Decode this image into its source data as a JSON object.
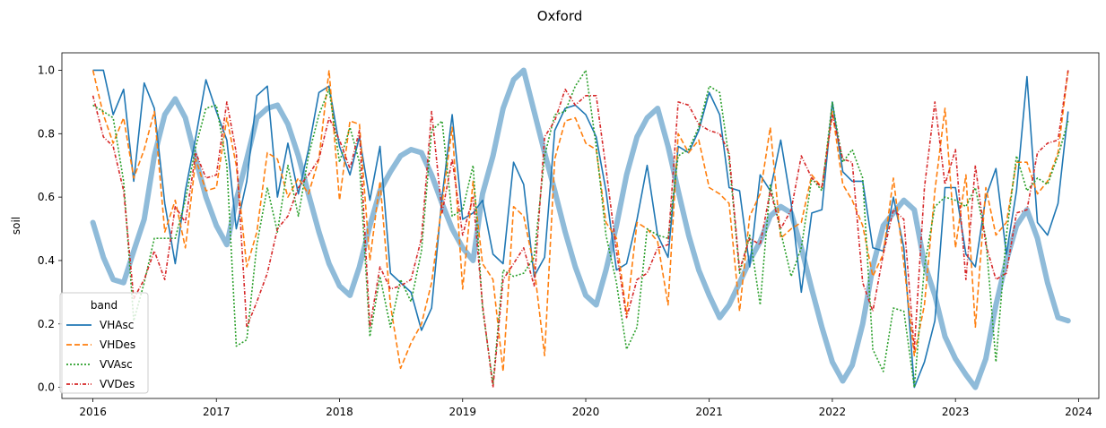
{
  "chart_data": {
    "type": "line",
    "title": "Oxford",
    "xlabel": "",
    "ylabel": "soil",
    "xlim": [
      "2015-10-01",
      "2024-03-01"
    ],
    "ylim": [
      -0.035,
      1.055
    ],
    "x_ticks": [
      "2016",
      "2017",
      "2018",
      "2019",
      "2020",
      "2021",
      "2022",
      "2023",
      "2024"
    ],
    "y_ticks": [
      "0.0",
      "0.2",
      "0.4",
      "0.6",
      "0.8",
      "1.0"
    ],
    "grid": false,
    "legend": {
      "title": "band",
      "placement": "lower-left"
    },
    "x": [
      "2016-01",
      "2016-02",
      "2016-03",
      "2016-04",
      "2016-05",
      "2016-06",
      "2016-07",
      "2016-08",
      "2016-09",
      "2016-10",
      "2016-11",
      "2016-12",
      "2017-01",
      "2017-02",
      "2017-03",
      "2017-04",
      "2017-05",
      "2017-06",
      "2017-07",
      "2017-08",
      "2017-09",
      "2017-10",
      "2017-11",
      "2017-12",
      "2018-01",
      "2018-02",
      "2018-03",
      "2018-04",
      "2018-05",
      "2018-06",
      "2018-07",
      "2018-08",
      "2018-09",
      "2018-10",
      "2018-11",
      "2018-12",
      "2019-01",
      "2019-02",
      "2019-03",
      "2019-04",
      "2019-05",
      "2019-06",
      "2019-07",
      "2019-08",
      "2019-09",
      "2019-10",
      "2019-11",
      "2019-12",
      "2020-01",
      "2020-02",
      "2020-03",
      "2020-04",
      "2020-05",
      "2020-06",
      "2020-07",
      "2020-08",
      "2020-09",
      "2020-10",
      "2020-11",
      "2020-12",
      "2021-01",
      "2021-02",
      "2021-03",
      "2021-04",
      "2021-05",
      "2021-06",
      "2021-07",
      "2021-08",
      "2021-09",
      "2021-10",
      "2021-11",
      "2021-12",
      "2022-01",
      "2022-02",
      "2022-03",
      "2022-04",
      "2022-05",
      "2022-06",
      "2022-07",
      "2022-08",
      "2022-09",
      "2022-10",
      "2022-11",
      "2022-12",
      "2023-01",
      "2023-02",
      "2023-03",
      "2023-04",
      "2023-05",
      "2023-06",
      "2023-07",
      "2023-08",
      "2023-09",
      "2023-10",
      "2023-11",
      "2023-12"
    ],
    "series": [
      {
        "name": "VHAsc",
        "color": "#1f77b4",
        "dash": "solid",
        "values": [
          1.0,
          1.0,
          0.86,
          0.94,
          0.65,
          0.96,
          0.88,
          0.58,
          0.39,
          0.62,
          0.79,
          0.97,
          0.87,
          0.78,
          0.5,
          0.65,
          0.92,
          0.95,
          0.6,
          0.77,
          0.61,
          0.75,
          0.93,
          0.95,
          0.76,
          0.67,
          0.79,
          0.59,
          0.76,
          0.36,
          0.33,
          0.3,
          0.18,
          0.25,
          0.6,
          0.86,
          0.53,
          0.55,
          0.59,
          0.42,
          0.39,
          0.71,
          0.64,
          0.35,
          0.41,
          0.81,
          0.88,
          0.89,
          0.86,
          0.79,
          0.62,
          0.37,
          0.39,
          0.53,
          0.7,
          0.48,
          0.41,
          0.76,
          0.74,
          0.81,
          0.93,
          0.86,
          0.63,
          0.62,
          0.38,
          0.67,
          0.62,
          0.78,
          0.58,
          0.3,
          0.55,
          0.56,
          0.9,
          0.68,
          0.65,
          0.65,
          0.44,
          0.43,
          0.6,
          0.44,
          0.0,
          0.08,
          0.21,
          0.63,
          0.63,
          0.42,
          0.38,
          0.6,
          0.69,
          0.42,
          0.62,
          0.98,
          0.52,
          0.48,
          0.58,
          0.87
        ]
      },
      {
        "name": "VHDes",
        "color": "#ff7f0e",
        "dash": "6,3",
        "values": [
          1.0,
          0.86,
          0.77,
          0.85,
          0.66,
          0.75,
          0.87,
          0.49,
          0.59,
          0.44,
          0.72,
          0.62,
          0.63,
          0.85,
          0.7,
          0.38,
          0.49,
          0.74,
          0.72,
          0.6,
          0.66,
          0.61,
          0.72,
          1.0,
          0.59,
          0.84,
          0.83,
          0.4,
          0.65,
          0.26,
          0.06,
          0.14,
          0.2,
          0.33,
          0.58,
          0.82,
          0.31,
          0.65,
          0.39,
          0.34,
          0.05,
          0.57,
          0.54,
          0.38,
          0.1,
          0.72,
          0.84,
          0.85,
          0.77,
          0.75,
          0.52,
          0.47,
          0.23,
          0.52,
          0.5,
          0.46,
          0.26,
          0.8,
          0.74,
          0.78,
          0.63,
          0.61,
          0.58,
          0.24,
          0.54,
          0.61,
          0.82,
          0.47,
          0.5,
          0.52,
          0.67,
          0.63,
          0.87,
          0.64,
          0.59,
          0.51,
          0.35,
          0.42,
          0.66,
          0.39,
          0.1,
          0.26,
          0.62,
          0.88,
          0.44,
          0.67,
          0.19,
          0.63,
          0.48,
          0.52,
          0.71,
          0.71,
          0.61,
          0.65,
          0.74,
          1.0
        ]
      },
      {
        "name": "VVAsc",
        "color": "#2ca02c",
        "dash": "2,2",
        "values": [
          0.89,
          0.87,
          0.85,
          0.65,
          0.21,
          0.33,
          0.47,
          0.47,
          0.47,
          0.59,
          0.76,
          0.88,
          0.89,
          0.7,
          0.13,
          0.15,
          0.45,
          0.63,
          0.49,
          0.7,
          0.54,
          0.73,
          0.86,
          0.94,
          0.71,
          0.82,
          0.71,
          0.16,
          0.35,
          0.19,
          0.34,
          0.27,
          0.43,
          0.81,
          0.84,
          0.54,
          0.56,
          0.7,
          0.25,
          0.01,
          0.37,
          0.35,
          0.36,
          0.41,
          0.73,
          0.86,
          0.87,
          0.95,
          1.0,
          0.76,
          0.48,
          0.33,
          0.12,
          0.19,
          0.5,
          0.48,
          0.47,
          0.73,
          0.75,
          0.82,
          0.95,
          0.93,
          0.72,
          0.36,
          0.48,
          0.26,
          0.64,
          0.49,
          0.35,
          0.44,
          0.66,
          0.62,
          0.9,
          0.71,
          0.75,
          0.66,
          0.12,
          0.05,
          0.25,
          0.24,
          0.0,
          0.38,
          0.57,
          0.6,
          0.59,
          0.57,
          0.63,
          0.47,
          0.08,
          0.48,
          0.73,
          0.62,
          0.66,
          0.64,
          0.73,
          0.84
        ]
      },
      {
        "name": "VVDes",
        "color": "#d62728",
        "dash": "4,2,1,2",
        "values": [
          0.92,
          0.79,
          0.76,
          0.62,
          0.28,
          0.34,
          0.43,
          0.34,
          0.57,
          0.52,
          0.74,
          0.66,
          0.67,
          0.9,
          0.74,
          0.19,
          0.27,
          0.36,
          0.5,
          0.54,
          0.63,
          0.67,
          0.72,
          0.85,
          0.78,
          0.69,
          0.81,
          0.19,
          0.38,
          0.31,
          0.32,
          0.34,
          0.47,
          0.87,
          0.55,
          0.72,
          0.48,
          0.6,
          0.26,
          0.0,
          0.34,
          0.39,
          0.44,
          0.32,
          0.79,
          0.84,
          0.94,
          0.89,
          0.92,
          0.92,
          0.69,
          0.43,
          0.22,
          0.34,
          0.36,
          0.44,
          0.45,
          0.9,
          0.89,
          0.83,
          0.81,
          0.8,
          0.74,
          0.37,
          0.47,
          0.45,
          0.62,
          0.5,
          0.56,
          0.73,
          0.66,
          0.63,
          0.86,
          0.72,
          0.71,
          0.33,
          0.24,
          0.42,
          0.56,
          0.53,
          0.12,
          0.63,
          0.9,
          0.64,
          0.75,
          0.34,
          0.7,
          0.45,
          0.34,
          0.36,
          0.55,
          0.56,
          0.74,
          0.77,
          0.78,
          1.0
        ]
      }
    ],
    "smooth_series": {
      "color": "#8fbbd9",
      "values": [
        0.52,
        0.41,
        0.34,
        0.33,
        0.43,
        0.53,
        0.73,
        0.86,
        0.91,
        0.85,
        0.72,
        0.6,
        0.51,
        0.45,
        0.59,
        0.72,
        0.85,
        0.88,
        0.89,
        0.83,
        0.73,
        0.61,
        0.49,
        0.39,
        0.32,
        0.29,
        0.38,
        0.51,
        0.62,
        0.68,
        0.73,
        0.75,
        0.74,
        0.67,
        0.58,
        0.5,
        0.44,
        0.4,
        0.61,
        0.73,
        0.88,
        0.97,
        1.0,
        0.87,
        0.74,
        0.62,
        0.49,
        0.38,
        0.29,
        0.26,
        0.37,
        0.51,
        0.67,
        0.79,
        0.85,
        0.88,
        0.76,
        0.62,
        0.48,
        0.37,
        0.29,
        0.22,
        0.26,
        0.33,
        0.4,
        0.46,
        0.54,
        0.57,
        0.55,
        0.44,
        0.31,
        0.19,
        0.08,
        0.02,
        0.07,
        0.2,
        0.38,
        0.51,
        0.55,
        0.59,
        0.56,
        0.39,
        0.29,
        0.16,
        0.09,
        0.04,
        0.0,
        0.09,
        0.26,
        0.4,
        0.51,
        0.56,
        0.47,
        0.33,
        0.22,
        0.21
      ]
    }
  }
}
